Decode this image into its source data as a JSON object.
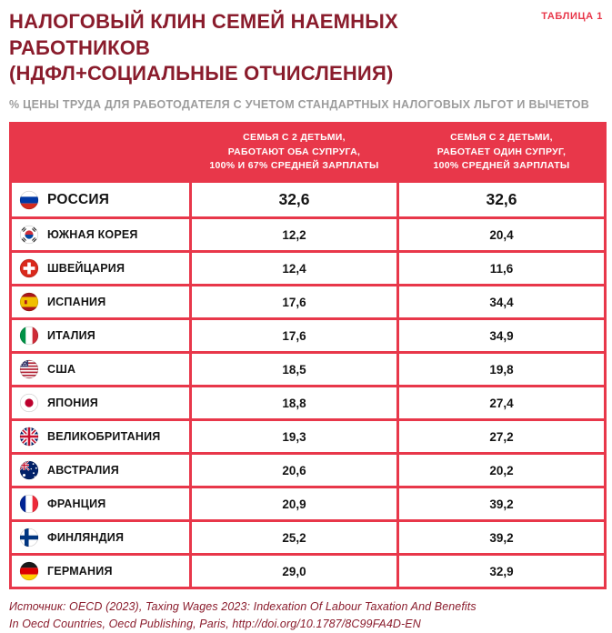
{
  "header": {
    "table_tag": "ТАБЛИЦА 1",
    "title": "НАЛОГОВЫЙ КЛИН СЕМЕЙ НАЕМНЫХ РАБОТНИКОВ\n(НДФЛ+СОЦИАЛЬНЫЕ ОТЧИСЛЕНИЯ)",
    "subtitle": "% ЦЕНЫ ТРУДА ДЛЯ РАБОТОДАТЕЛЯ С УЧЕТОМ СТАНДАРТНЫХ НАЛОГОВЫХ ЛЬГОТ И ВЫЧЕТОВ"
  },
  "colors": {
    "accent_red": "#e8374a",
    "title_maroon": "#8a1c2c",
    "subtitle_gray": "#9c9c9c"
  },
  "chart_data": {
    "type": "table",
    "title": "НАЛОГОВЫЙ КЛИН СЕМЕЙ НАЕМНЫХ РАБОТНИКОВ (НДФЛ+СОЦИАЛЬНЫЕ ОТЧИСЛЕНИЯ)",
    "subtitle": "% ЦЕНЫ ТРУДА ДЛЯ РАБОТОДАТЕЛЯ С УЧЕТОМ СТАНДАРТНЫХ НАЛОГОВЫХ ЛЬГОТ И ВЫЧЕТОВ",
    "columns": [
      "",
      "СЕМЬЯ С 2 ДЕТЬМИ,\nРАБОТАЮТ ОБА СУПРУГА,\n100% И 67% СРЕДНЕЙ ЗАРПЛАТЫ",
      "СЕМЬЯ С 2 ДЕТЬМИ,\nРАБОТАЕТ ОДИН СУПРУГ,\n100% СРЕДНЕЙ ЗАРПЛАТЫ"
    ],
    "rows": [
      {
        "country": "РОССИЯ",
        "flag": "russia",
        "values": [
          "32,6",
          "32,6"
        ],
        "highlight": true
      },
      {
        "country": "ЮЖНАЯ КОРЕЯ",
        "flag": "south-korea",
        "values": [
          "12,2",
          "20,4"
        ],
        "highlight": false
      },
      {
        "country": "ШВЕЙЦАРИЯ",
        "flag": "switzerland",
        "values": [
          "12,4",
          "11,6"
        ],
        "highlight": false
      },
      {
        "country": "ИСПАНИЯ",
        "flag": "spain",
        "values": [
          "17,6",
          "34,4"
        ],
        "highlight": false
      },
      {
        "country": "ИТАЛИЯ",
        "flag": "italy",
        "values": [
          "17,6",
          "34,9"
        ],
        "highlight": false
      },
      {
        "country": "США",
        "flag": "usa",
        "values": [
          "18,5",
          "19,8"
        ],
        "highlight": false
      },
      {
        "country": "ЯПОНИЯ",
        "flag": "japan",
        "values": [
          "18,8",
          "27,4"
        ],
        "highlight": false
      },
      {
        "country": "ВЕЛИКОБРИТАНИЯ",
        "flag": "uk",
        "values": [
          "19,3",
          "27,2"
        ],
        "highlight": false
      },
      {
        "country": "АВСТРАЛИЯ",
        "flag": "australia",
        "values": [
          "20,6",
          "20,2"
        ],
        "highlight": false
      },
      {
        "country": "ФРАНЦИЯ",
        "flag": "france",
        "values": [
          "20,9",
          "39,2"
        ],
        "highlight": false
      },
      {
        "country": "ФИНЛЯНДИЯ",
        "flag": "finland",
        "values": [
          "25,2",
          "39,2"
        ],
        "highlight": false
      },
      {
        "country": "ГЕРМАНИЯ",
        "flag": "germany",
        "values": [
          "29,0",
          "32,9"
        ],
        "highlight": false
      }
    ]
  },
  "footer": {
    "source": "Источник: OECD (2023), Taxing Wages 2023: Indexation Of Labour Taxation And Benefits\nIn Oecd Countries, Oecd Publishing, Paris, http://doi.org/10.1787/8C99FA4D-EN"
  }
}
